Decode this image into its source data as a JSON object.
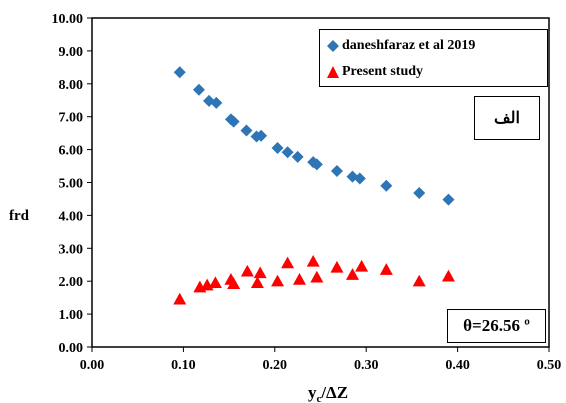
{
  "chart_data": {
    "type": "scatter",
    "xlabel_main": "y",
    "xlabel_sub": "c",
    "xlabel_rest": "/ΔZ",
    "ylabel": "frd",
    "xlim": [
      0.0,
      0.5
    ],
    "ylim": [
      0.0,
      10.0
    ],
    "x_ticks": [
      "0.00",
      "0.10",
      "0.20",
      "0.30",
      "0.40",
      "0.50"
    ],
    "y_ticks": [
      "0.00",
      "1.00",
      "2.00",
      "3.00",
      "4.00",
      "5.00",
      "6.00",
      "7.00",
      "8.00",
      "9.00",
      "10.00"
    ],
    "legend_position": "top-right",
    "series": [
      {
        "name": "daneshfaraz et al 2019",
        "marker": "diamond",
        "color": "#2E75B6",
        "x": [
          0.096,
          0.117,
          0.128,
          0.136,
          0.152,
          0.155,
          0.169,
          0.18,
          0.185,
          0.203,
          0.214,
          0.225,
          0.242,
          0.246,
          0.268,
          0.285,
          0.293,
          0.322,
          0.358,
          0.39
        ],
        "y": [
          8.35,
          7.82,
          7.48,
          7.42,
          6.92,
          6.85,
          6.58,
          6.4,
          6.42,
          6.05,
          5.92,
          5.78,
          5.62,
          5.55,
          5.35,
          5.18,
          5.12,
          4.9,
          4.68,
          4.48
        ]
      },
      {
        "name": "Present study",
        "marker": "triangle",
        "color": "#FF0000",
        "x": [
          0.096,
          0.118,
          0.126,
          0.135,
          0.152,
          0.155,
          0.17,
          0.181,
          0.184,
          0.203,
          0.214,
          0.227,
          0.242,
          0.246,
          0.268,
          0.285,
          0.295,
          0.322,
          0.358,
          0.39
        ],
        "y": [
          1.45,
          1.82,
          1.88,
          1.95,
          2.05,
          1.92,
          2.3,
          1.95,
          2.25,
          2.0,
          2.55,
          2.05,
          2.6,
          2.12,
          2.42,
          2.2,
          2.45,
          2.35,
          2.0,
          2.15
        ]
      }
    ],
    "annotations": [
      "الف",
      "θ=26.56 º"
    ]
  }
}
